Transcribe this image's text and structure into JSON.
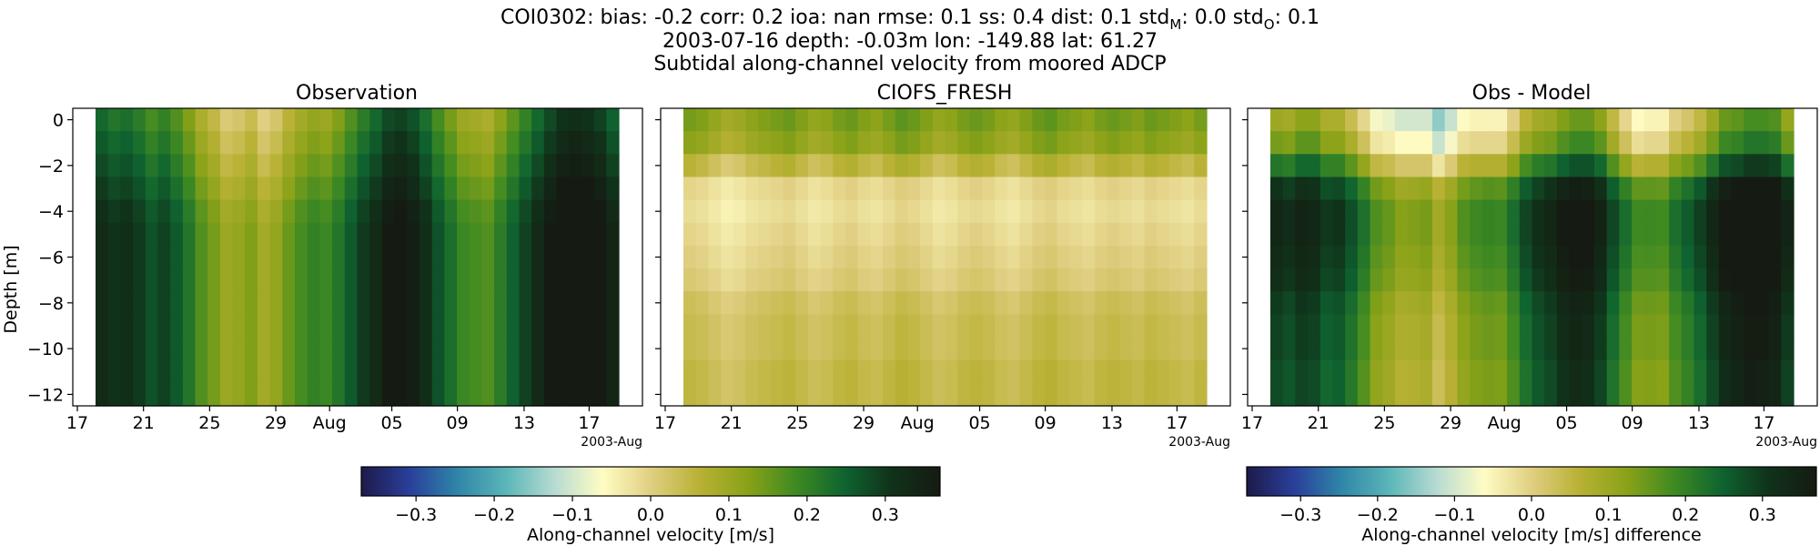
{
  "header": {
    "line1_prefix": "COI0302: bias: -0.2  corr: 0.2  ioa: nan  rmse: 0.1  ss: 0.4  dist: 0.1  std",
    "line1_sub_m": "M",
    "line1_mid": ": 0.0  std",
    "line1_sub_o": "O",
    "line1_suffix": ": 0.1",
    "line2": "2003-07-16 depth: -0.03m lon: -149.88 lat: 61.27",
    "line3": "Subtidal along-channel velocity from moored ADCP"
  },
  "colors": {
    "scale": [
      "#1d1a4a",
      "#2a3f9a",
      "#2f86a8",
      "#5ab6b8",
      "#b7dbd2",
      "#fffcc4",
      "#e0cf82",
      "#b9b135",
      "#8aa218",
      "#3f8a22",
      "#0f6430",
      "#10321a",
      "#151b12"
    ]
  },
  "chart_data": [
    {
      "type": "heatmap",
      "panel": "observation",
      "title": "Observation",
      "ylabel": "Depth [m]",
      "ylim": [
        -12.5,
        0.5
      ],
      "y_ticks": [
        "0",
        "−2",
        "−4",
        "−6",
        "−8",
        "−10",
        "−12"
      ],
      "x_ticks": [
        "17",
        "21",
        "25",
        "29",
        "Aug",
        "05",
        "09",
        "13",
        "17"
      ],
      "x_offset_label": "2003-Aug",
      "x_range": [
        "2003-07-16",
        "2003-08-19"
      ],
      "depths": [
        0,
        -1,
        -2,
        -3,
        -4,
        -5,
        -6,
        -7,
        -8,
        -9,
        -10,
        -11,
        -12
      ],
      "time_profile": [
        0.28,
        0.26,
        0.27,
        0.25,
        0.22,
        0.24,
        0.21,
        0.17,
        0.12,
        0.09,
        0.05,
        0.06,
        0.08,
        0.04,
        0.06,
        0.1,
        0.13,
        0.15,
        0.14,
        0.17,
        0.21,
        0.25,
        0.28,
        0.32,
        0.33,
        0.31,
        0.27,
        0.22,
        0.18,
        0.14,
        0.13,
        0.12,
        0.16,
        0.2,
        0.24,
        0.28,
        0.32,
        0.35,
        0.36,
        0.35,
        0.33,
        0.29
      ],
      "depth_offset": [
        -0.04,
        -0.02,
        0.0,
        0.02,
        0.04,
        0.05,
        0.05,
        0.05,
        0.05,
        0.05,
        0.05,
        0.05,
        0.05
      ],
      "color_range": [
        -0.37,
        0.37
      ]
    },
    {
      "type": "heatmap",
      "panel": "model",
      "title": "CIOFS_FRESH",
      "ylim": [
        -12.5,
        0.5
      ],
      "x_ticks": [
        "17",
        "21",
        "25",
        "29",
        "Aug",
        "05",
        "09",
        "13",
        "17"
      ],
      "x_offset_label": "2003-Aug",
      "x_range": [
        "2003-07-16",
        "2003-08-19"
      ],
      "depths": [
        0,
        -1,
        -2,
        -3,
        -4,
        -5,
        -6,
        -7,
        -8,
        -9,
        -10,
        -11,
        -12
      ],
      "depth_base": [
        0.12,
        0.1,
        0.04,
        -0.02,
        -0.03,
        -0.02,
        -0.01,
        0.0,
        0.02,
        0.03,
        0.03,
        0.04,
        0.04
      ],
      "time_variation": [
        0.02,
        0.01,
        -0.01,
        -0.03,
        -0.02,
        0.0,
        0.01,
        0.02,
        0.03,
        0.01,
        -0.01,
        0.0,
        0.02,
        0.03,
        0.01,
        0.0,
        0.02,
        0.04,
        0.03,
        0.01,
        -0.01,
        0.0,
        0.02,
        0.03,
        0.02,
        0.0,
        -0.01,
        0.01,
        0.03,
        0.04,
        0.02,
        0.01,
        0.0,
        0.02,
        0.03,
        0.02,
        0.01,
        0.03,
        0.02,
        0.01,
        0.0,
        0.02
      ],
      "color_range": [
        -0.37,
        0.37
      ]
    },
    {
      "type": "heatmap",
      "panel": "difference",
      "title": "Obs - Model",
      "ylim": [
        -12.5,
        0.5
      ],
      "x_ticks": [
        "17",
        "21",
        "25",
        "29",
        "Aug",
        "05",
        "09",
        "13",
        "17"
      ],
      "x_offset_label": "2003-Aug",
      "x_range": [
        "2003-07-16",
        "2003-08-19"
      ],
      "depths": [
        0,
        -1,
        -2,
        -3,
        -4,
        -5,
        -6,
        -7,
        -8,
        -9,
        -10,
        -11,
        -12
      ],
      "note_values": "difference = observation - model",
      "color_range": [
        -0.37,
        0.37
      ]
    }
  ],
  "colorbars": [
    {
      "label": "Along-channel velocity [m/s]",
      "range": [
        -0.37,
        0.37
      ],
      "ticks": [
        -0.3,
        -0.2,
        -0.1,
        0.0,
        0.1,
        0.2,
        0.3
      ],
      "tick_labels": [
        "−0.3",
        "−0.2",
        "−0.1",
        "0.0",
        "0.1",
        "0.2",
        "0.3"
      ]
    },
    {
      "label": "Along-channel velocity [m/s] difference",
      "range": [
        -0.37,
        0.37
      ],
      "ticks": [
        -0.3,
        -0.2,
        -0.1,
        0.0,
        0.1,
        0.2,
        0.3
      ],
      "tick_labels": [
        "−0.3",
        "−0.2",
        "−0.1",
        "0.0",
        "0.1",
        "0.2",
        "0.3"
      ]
    }
  ]
}
